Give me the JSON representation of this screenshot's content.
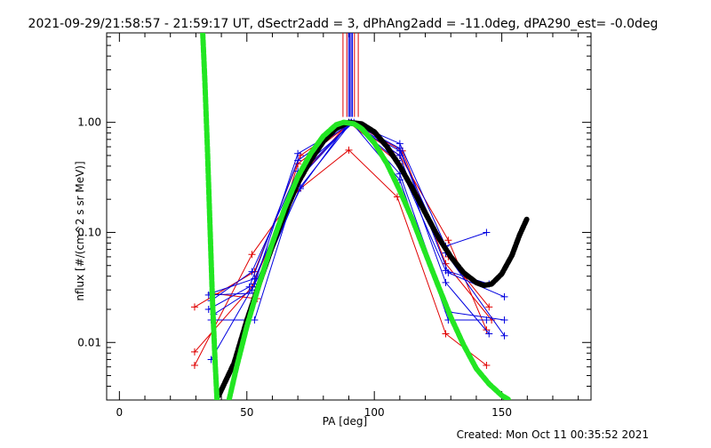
{
  "chart_data": {
    "type": "line",
    "title": "2021-09-29/21:58:57 - 21:59:17 UT, dSectr2add = 3, dPhAng2add = -11.0deg, dPA290_est= -0.0deg",
    "xlabel": "PA [deg]",
    "ylabel": "nflux [#/(cm^2 s sr MeV)]",
    "footer": "Created: Mon Oct 11 00:35:52 2021",
    "x_scale": "linear",
    "y_scale": "log",
    "xlim": [
      -5,
      185
    ],
    "ylim": [
      0.003,
      6.5
    ],
    "x_ticks": [
      0,
      50,
      100,
      150
    ],
    "x_tick_labels": [
      "0",
      "50",
      "100",
      "150"
    ],
    "y_ticks": [
      1.0,
      0.1,
      0.01
    ],
    "y_tick_labels": [
      "1.00",
      "0.10",
      "0.01"
    ],
    "colors": {
      "red": "#e00000",
      "blue": "#0000e0",
      "black": "#000000",
      "green": "#22e622"
    },
    "markers": {
      "red": "+",
      "blue": "+"
    },
    "series": [
      {
        "color": "red",
        "x": [
          29.5,
          52,
          70,
          90,
          109,
          128,
          144
        ],
        "y": [
          0.0062,
          0.063,
          0.24,
          0.56,
          0.21,
          0.012,
          0.0062
        ]
      },
      {
        "color": "red",
        "x": [
          29.5,
          52,
          70,
          90,
          110,
          129,
          144
        ],
        "y": [
          0.0082,
          0.032,
          0.3,
          1.0,
          0.5,
          0.085,
          0.013
        ]
      },
      {
        "color": "red",
        "x": [
          29.5,
          53,
          71,
          90,
          110,
          129,
          145
        ],
        "y": [
          0.021,
          0.044,
          0.5,
          1.0,
          0.42,
          0.06,
          0.021
        ]
      },
      {
        "color": "red",
        "x": [
          36,
          54,
          70,
          91,
          111,
          128,
          146
        ],
        "y": [
          0.028,
          0.025,
          0.42,
          1.0,
          0.55,
          0.052,
          0.016
        ]
      },
      {
        "color": "blue",
        "x": [
          36,
          53,
          70,
          91,
          110,
          128,
          144
        ],
        "y": [
          0.007,
          0.034,
          0.52,
          1.0,
          0.64,
          0.075,
          0.1
        ]
      },
      {
        "color": "blue",
        "x": [
          35,
          51,
          70,
          91,
          109,
          128,
          145
        ],
        "y": [
          0.02,
          0.032,
          0.45,
          1.0,
          0.45,
          0.045,
          0.034
        ]
      },
      {
        "color": "blue",
        "x": [
          36,
          53,
          71,
          91,
          110,
          129,
          144
        ],
        "y": [
          0.016,
          0.016,
          0.34,
          1.0,
          0.3,
          0.016,
          0.016
        ]
      },
      {
        "color": "blue",
        "x": [
          36,
          52,
          70,
          92,
          110,
          129,
          151
        ],
        "y": [
          0.024,
          0.044,
          0.36,
          1.0,
          0.34,
          0.019,
          0.016
        ]
      },
      {
        "color": "blue",
        "x": [
          35,
          53,
          71,
          91,
          110,
          128,
          145
        ],
        "y": [
          0.027,
          0.028,
          0.26,
          1.0,
          0.5,
          0.035,
          0.012
        ]
      },
      {
        "color": "blue",
        "x": [
          36,
          53,
          70,
          91,
          110,
          129,
          151
        ],
        "y": [
          0.028,
          0.038,
          0.3,
          1.0,
          0.58,
          0.043,
          0.026
        ]
      },
      {
        "color": "blue",
        "x": [
          37,
          52,
          71,
          90,
          110,
          128,
          151
        ],
        "y": [
          0.018,
          0.03,
          0.25,
          1.0,
          0.55,
          0.065,
          0.0115
        ]
      }
    ],
    "vlines": [
      {
        "color": "red",
        "x": [
          87.7,
          89.2,
          92.2,
          93.7
        ],
        "y_from": 1.12,
        "y_to": 6.5
      },
      {
        "color": "blue",
        "x": [
          89.9,
          90.4,
          90.9,
          91.4
        ],
        "y_from": 1.12,
        "y_to": 6.5
      }
    ],
    "fits": [
      {
        "color": "black",
        "style": "thick-dashed",
        "x": [
          39,
          45,
          50,
          55,
          60,
          65,
          70,
          75,
          80,
          85,
          90,
          95,
          100,
          105,
          110,
          115,
          120,
          125,
          130,
          135,
          140,
          143,
          146,
          150,
          154,
          157,
          160
        ],
        "y": [
          0.0033,
          0.0065,
          0.016,
          0.035,
          0.075,
          0.15,
          0.28,
          0.45,
          0.67,
          0.88,
          1.0,
          0.97,
          0.82,
          0.6,
          0.4,
          0.25,
          0.15,
          0.091,
          0.06,
          0.043,
          0.035,
          0.033,
          0.034,
          0.042,
          0.062,
          0.095,
          0.135
        ]
      },
      {
        "color": "green",
        "style": "thick-dashed",
        "x": [
          32.7,
          33.5,
          34.5,
          35.5,
          36.5,
          37.5,
          38.3
        ],
        "y": [
          6.5,
          2.5,
          0.6,
          0.12,
          0.025,
          0.007,
          0.003
        ]
      },
      {
        "color": "green",
        "style": "thick-dashed",
        "x": [
          43,
          46,
          50,
          55,
          60,
          65,
          70,
          75,
          80,
          85,
          88,
          92,
          95,
          100,
          105,
          110,
          115,
          120,
          125,
          130,
          135,
          140,
          145,
          150,
          153
        ],
        "y": [
          0.003,
          0.006,
          0.014,
          0.035,
          0.08,
          0.17,
          0.32,
          0.52,
          0.75,
          0.95,
          1.0,
          0.97,
          0.88,
          0.65,
          0.42,
          0.24,
          0.13,
          0.065,
          0.033,
          0.017,
          0.0095,
          0.0058,
          0.0042,
          0.0033,
          0.003
        ]
      }
    ]
  }
}
